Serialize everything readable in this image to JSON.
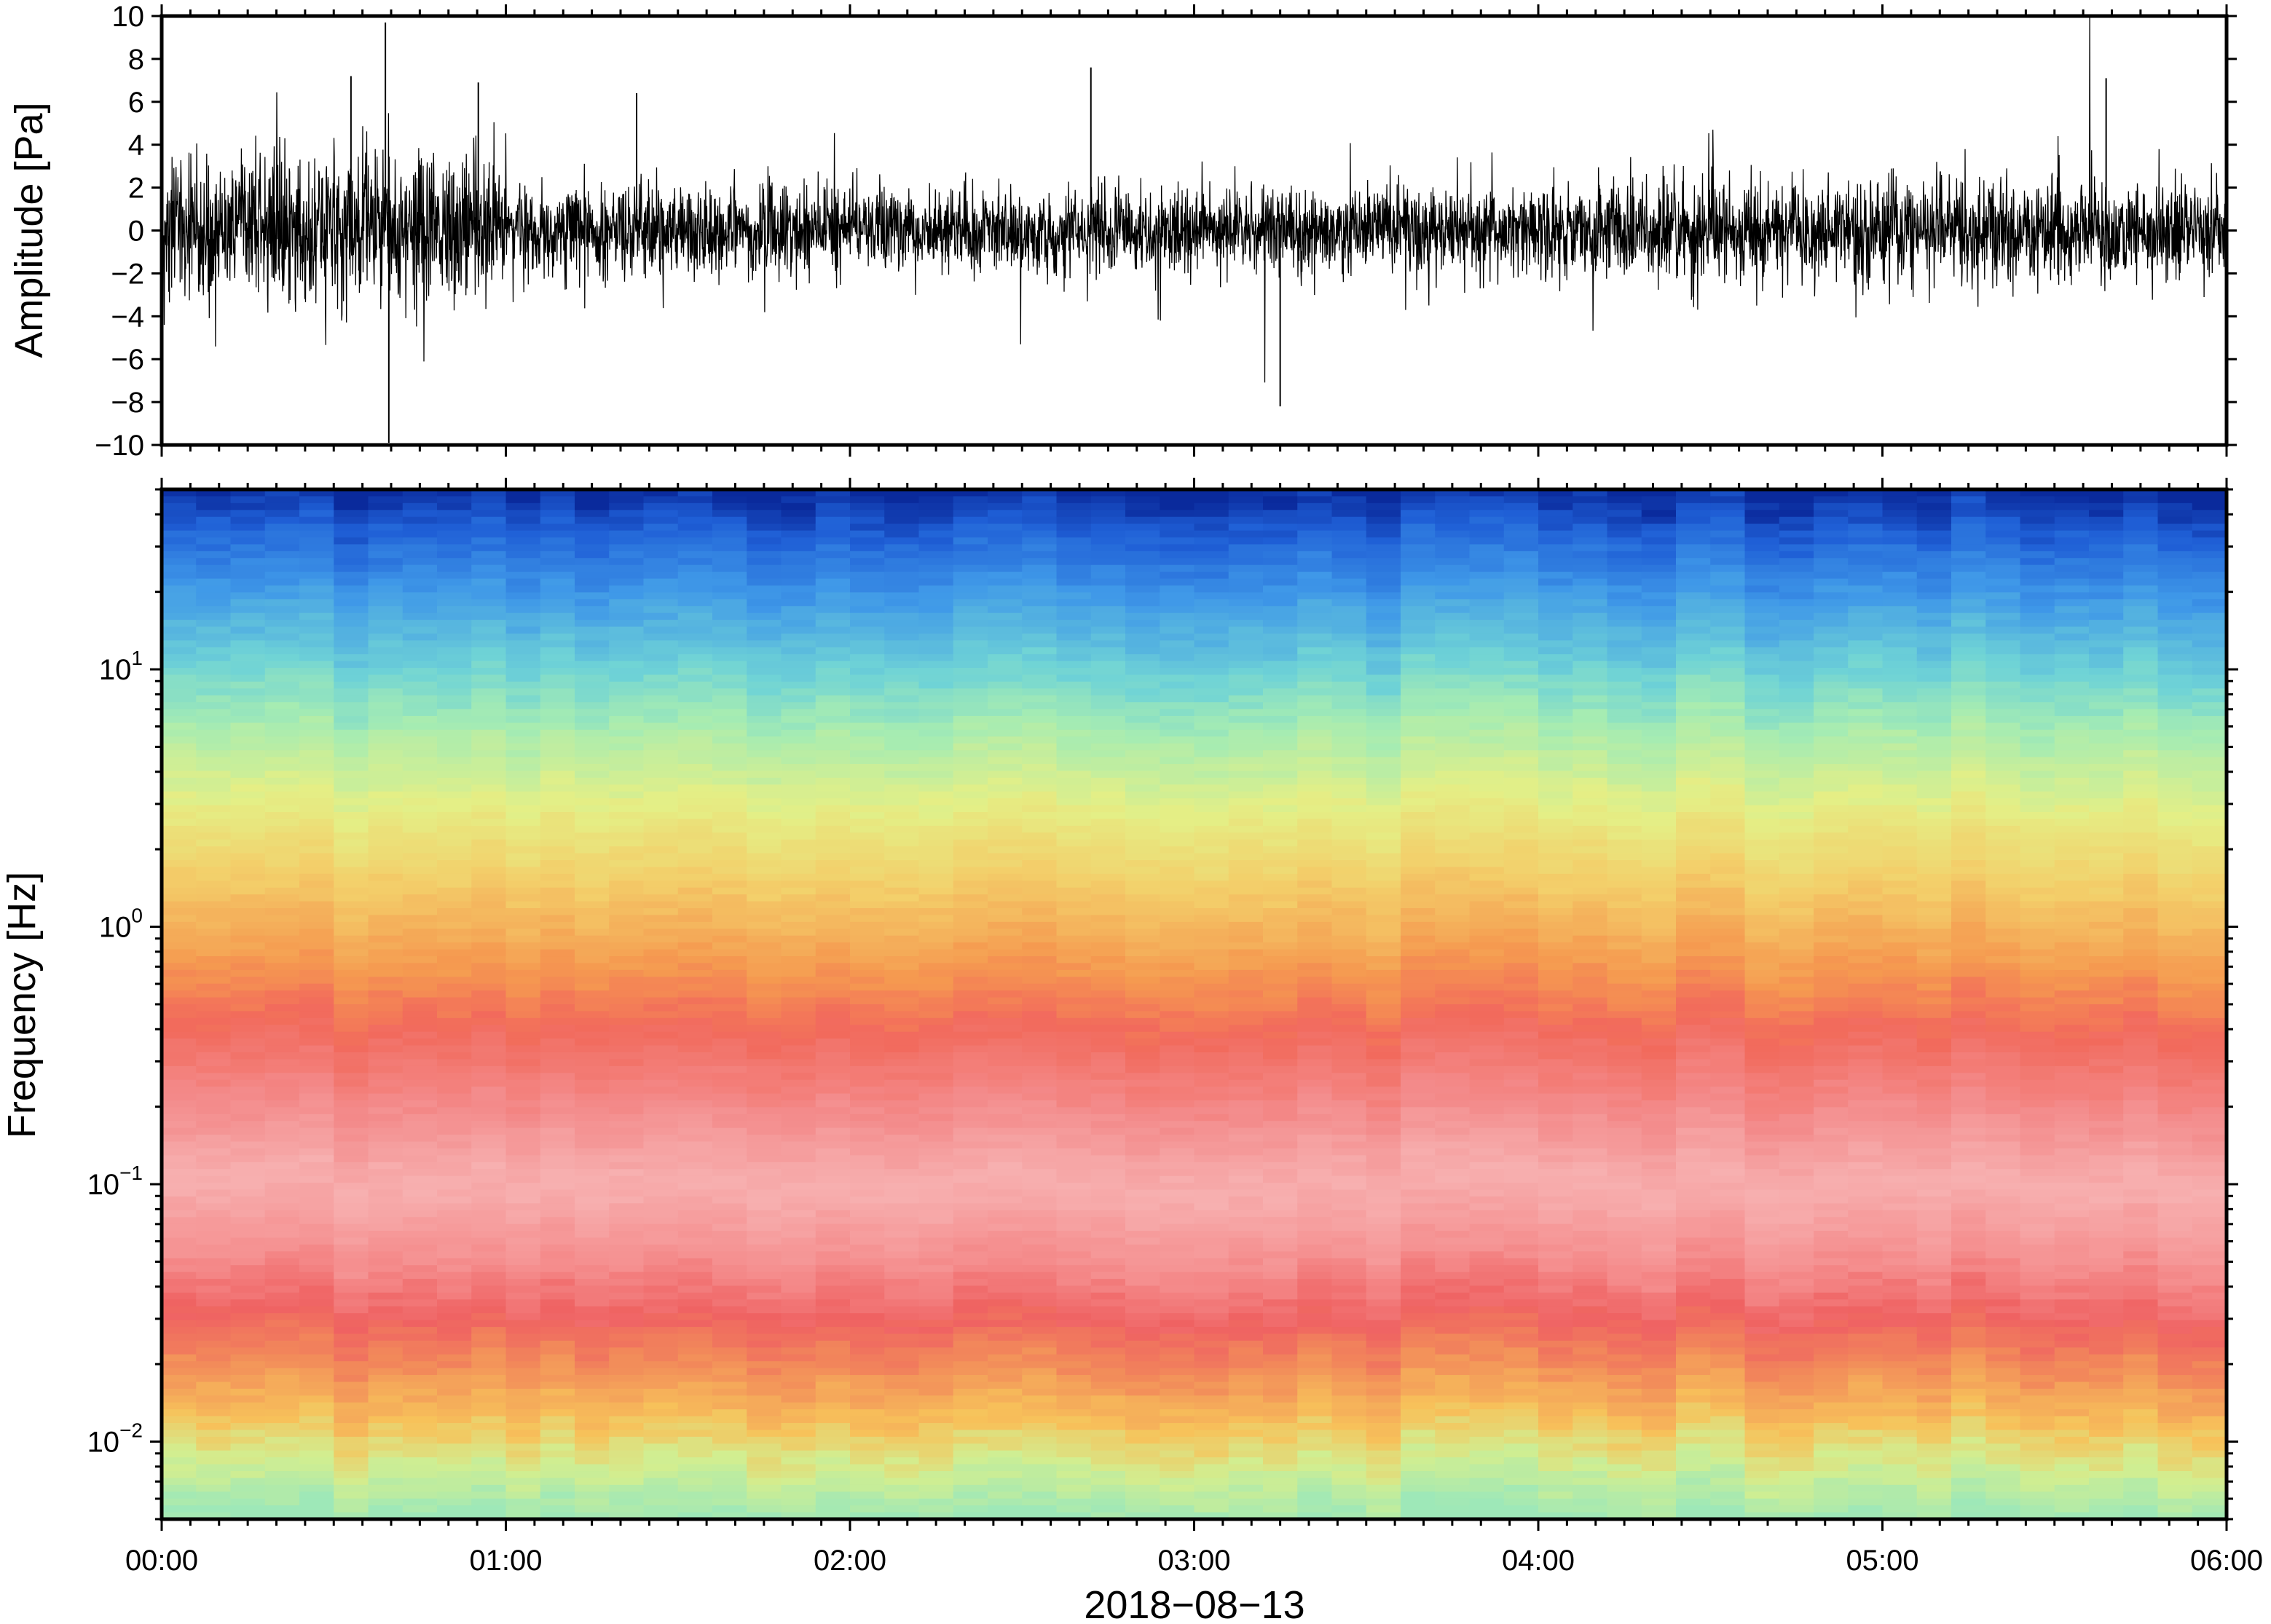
{
  "chart_data": [
    {
      "type": "line",
      "panel": "waveform",
      "ylabel": "Amplitude [Pa]",
      "ylim": [
        -10,
        10
      ],
      "yticks": [
        10,
        8,
        6,
        4,
        2,
        0,
        -2,
        -4,
        -6,
        -8,
        -10
      ],
      "ytick_labels": [
        "10",
        "8",
        "6",
        "4",
        "2",
        "0",
        "−2",
        "−4",
        "−6",
        "−8",
        "−10"
      ],
      "xlim": [
        "00:00",
        "06:00"
      ],
      "series": [
        {
          "color": "#000000",
          "segments": [
            {
              "from_hour": 0.0,
              "to_hour": 1.0,
              "typical_peak_pa": 3.2
            },
            {
              "from_hour": 1.0,
              "to_hour": 2.0,
              "typical_peak_pa": 2.0
            },
            {
              "from_hour": 2.0,
              "to_hour": 4.0,
              "typical_peak_pa": 1.8
            },
            {
              "from_hour": 4.0,
              "to_hour": 6.0,
              "typical_peak_pa": 2.1
            }
          ],
          "spikes": [
            {
              "hour": 0.65,
              "value": 9.7
            },
            {
              "hour": 0.66,
              "value": -9.9
            },
            {
              "hour": 0.55,
              "value": 7.2
            },
            {
              "hour": 2.7,
              "value": 7.6
            },
            {
              "hour": 3.25,
              "value": -8.2
            },
            {
              "hour": 1.38,
              "value": 6.4
            },
            {
              "hour": 5.65,
              "value": 7.1
            },
            {
              "hour": 0.92,
              "value": 6.9
            }
          ]
        }
      ]
    },
    {
      "type": "heatmap",
      "panel": "spectrogram",
      "ylabel": "Frequency [Hz]",
      "xlabel": "2018−08−13",
      "yscale": "log",
      "ylim": [
        0.005,
        50
      ],
      "ytick_labels": [
        {
          "base": "10",
          "exp": "1",
          "value": 10
        },
        {
          "base": "10",
          "exp": "0",
          "value": 1
        },
        {
          "base": "10",
          "exp": "−1",
          "value": 0.1
        },
        {
          "base": "10",
          "exp": "−2",
          "value": 0.01
        }
      ],
      "xticks": [
        "00:00",
        "01:00",
        "02:00",
        "03:00",
        "04:00",
        "05:00",
        "06:00"
      ],
      "xlim_hours": [
        0,
        6
      ],
      "colormap": [
        "#0a2a9c",
        "#1f6fe0",
        "#4fb0ee",
        "#7fe3c8",
        "#c9f08e",
        "#f0e878",
        "#f7b04c",
        "#f26a5c",
        "#f7a9a9"
      ],
      "time_columns": 60,
      "spectrum_profile": [
        {
          "freq_hz": 50,
          "color": "#0a2a9c"
        },
        {
          "freq_hz": 35,
          "color": "#1f5fd6"
        },
        {
          "freq_hz": 20,
          "color": "#3f98e8"
        },
        {
          "freq_hz": 10,
          "color": "#6fd3d6"
        },
        {
          "freq_hz": 6,
          "color": "#a6ecb2"
        },
        {
          "freq_hz": 3,
          "color": "#e4ef86"
        },
        {
          "freq_hz": 1.5,
          "color": "#f3cf6a"
        },
        {
          "freq_hz": 0.7,
          "color": "#f59a50"
        },
        {
          "freq_hz": 0.4,
          "color": "#f26a5c"
        },
        {
          "freq_hz": 0.2,
          "color": "#f38a8a"
        },
        {
          "freq_hz": 0.1,
          "color": "#f7b0b0"
        },
        {
          "freq_hz": 0.05,
          "color": "#f58f8f"
        },
        {
          "freq_hz": 0.03,
          "color": "#ef6262"
        },
        {
          "freq_hz": 0.02,
          "color": "#f28a5a"
        },
        {
          "freq_hz": 0.012,
          "color": "#f7c25a"
        },
        {
          "freq_hz": 0.008,
          "color": "#d2ee90"
        },
        {
          "freq_hz": 0.005,
          "color": "#9ee8b8"
        }
      ]
    }
  ]
}
